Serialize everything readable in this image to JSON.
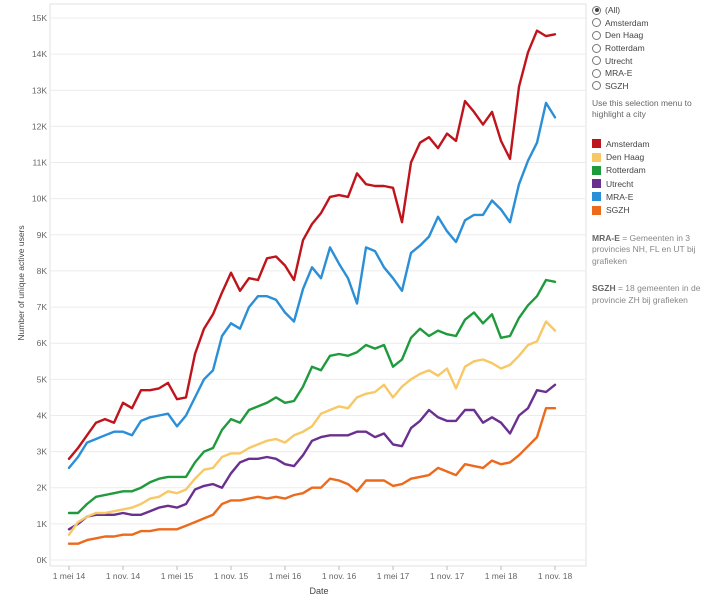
{
  "filter": {
    "options": [
      "(All)",
      "Amsterdam",
      "Den Haag",
      "Rotterdam",
      "Utrecht",
      "MRA-E",
      "SGZH"
    ],
    "selected": "(All)",
    "hint": "Use this selection menu to highlight a city"
  },
  "legend": [
    {
      "label": "Amsterdam",
      "color": "#c0141c"
    },
    {
      "label": "Den Haag",
      "color": "#f8c866"
    },
    {
      "label": "Rotterdam",
      "color": "#1f9a3c"
    },
    {
      "label": "Utrecht",
      "color": "#6a3090"
    },
    {
      "label": "MRA-E",
      "color": "#2b8fd8"
    },
    {
      "label": "SGZH",
      "color": "#ec6a1c"
    }
  ],
  "notes": [
    {
      "term": "MRA-E",
      "text": " = Gemeenten in 3 provincies NH, FL en UT bij grafieken"
    },
    {
      "term": "SGZH",
      "text": " = 18 gemeenten in de provincie ZH bij grafieken"
    }
  ],
  "chart_data": {
    "type": "line",
    "xlabel": "Date",
    "ylabel": "Number of unique active users",
    "x_ticks": [
      "1 mei 14",
      "1 nov. 14",
      "1 mei 15",
      "1 nov. 15",
      "1 mei 16",
      "1 nov. 16",
      "1 mei 17",
      "1 nov. 17",
      "1 mei 18",
      "1 nov. 18"
    ],
    "y_ticks": [
      "0K",
      "1K",
      "2K",
      "3K",
      "4K",
      "5K",
      "6K",
      "7K",
      "8K",
      "9K",
      "10K",
      "11K",
      "12K",
      "13K",
      "14K",
      "15K"
    ],
    "ylim": [
      0,
      15000
    ],
    "x_start": "2014-05",
    "x_interval": "monthly",
    "grid": true,
    "series": [
      {
        "name": "Amsterdam",
        "color": "#c0141c",
        "values": [
          2800,
          3100,
          3450,
          3800,
          3900,
          3800,
          4350,
          4200,
          4700,
          4700,
          4750,
          4900,
          4450,
          4500,
          5700,
          6400,
          6800,
          7400,
          7950,
          7450,
          7800,
          7750,
          8350,
          8400,
          8150,
          7750,
          8850,
          9300,
          9600,
          10050,
          10100,
          10050,
          10700,
          10400,
          10350,
          10350,
          10300,
          9350,
          11000,
          11550,
          11700,
          11400,
          11800,
          11600,
          12700,
          12400,
          12050,
          12400,
          11600,
          11100,
          13100,
          14050,
          14650,
          14500,
          14550
        ]
      },
      {
        "name": "Den Haag",
        "color": "#f8c866",
        "values": [
          700,
          1050,
          1200,
          1300,
          1300,
          1350,
          1400,
          1450,
          1550,
          1700,
          1750,
          1900,
          1850,
          1950,
          2250,
          2500,
          2550,
          2850,
          2950,
          2950,
          3100,
          3200,
          3300,
          3350,
          3250,
          3450,
          3550,
          3700,
          4050,
          4150,
          4250,
          4200,
          4500,
          4600,
          4650,
          4850,
          4500,
          4800,
          5000,
          5150,
          5250,
          5100,
          5300,
          4750,
          5350,
          5500,
          5550,
          5450,
          5300,
          5400,
          5650,
          5950,
          6050,
          6600,
          6350
        ]
      },
      {
        "name": "Rotterdam",
        "color": "#1f9a3c",
        "values": [
          1300,
          1300,
          1550,
          1750,
          1800,
          1850,
          1900,
          1900,
          2000,
          2150,
          2250,
          2300,
          2300,
          2300,
          2700,
          3000,
          3100,
          3600,
          3900,
          3800,
          4150,
          4250,
          4350,
          4500,
          4350,
          4400,
          4800,
          5350,
          5250,
          5650,
          5700,
          5650,
          5750,
          5950,
          5850,
          5950,
          5350,
          5550,
          6150,
          6400,
          6200,
          6350,
          6250,
          6200,
          6650,
          6850,
          6550,
          6800,
          6150,
          6200,
          6700,
          7050,
          7300,
          7750,
          7700
        ]
      },
      {
        "name": "Utrecht",
        "color": "#6a3090",
        "values": [
          850,
          1000,
          1200,
          1250,
          1250,
          1250,
          1300,
          1250,
          1250,
          1350,
          1450,
          1500,
          1450,
          1550,
          1950,
          2050,
          2100,
          2000,
          2400,
          2700,
          2800,
          2800,
          2850,
          2800,
          2650,
          2600,
          2900,
          3300,
          3400,
          3450,
          3450,
          3450,
          3550,
          3550,
          3400,
          3500,
          3200,
          3150,
          3650,
          3850,
          4150,
          3950,
          3850,
          3850,
          4150,
          4150,
          3800,
          3950,
          3800,
          3500,
          4000,
          4200,
          4700,
          4650,
          4850
        ]
      },
      {
        "name": "MRA-E",
        "color": "#2b8fd8",
        "values": [
          2550,
          2850,
          3250,
          3350,
          3450,
          3550,
          3550,
          3450,
          3850,
          3950,
          4000,
          4050,
          3700,
          4000,
          4500,
          5000,
          5250,
          6200,
          6550,
          6400,
          7000,
          7300,
          7300,
          7200,
          6850,
          6600,
          7500,
          8100,
          7800,
          8650,
          8200,
          7800,
          7100,
          8650,
          8550,
          8100,
          7800,
          7450,
          8500,
          8700,
          8950,
          9500,
          9100,
          8800,
          9400,
          9550,
          9550,
          9950,
          9700,
          9350,
          10400,
          11050,
          11550,
          12650,
          12250
        ]
      },
      {
        "name": "SGZH",
        "color": "#ec6a1c",
        "values": [
          450,
          450,
          550,
          600,
          650,
          650,
          700,
          700,
          800,
          800,
          850,
          850,
          850,
          950,
          1050,
          1150,
          1250,
          1550,
          1650,
          1650,
          1700,
          1750,
          1700,
          1750,
          1700,
          1800,
          1850,
          2000,
          2000,
          2250,
          2200,
          2100,
          1900,
          2200,
          2200,
          2200,
          2050,
          2100,
          2250,
          2300,
          2350,
          2550,
          2450,
          2350,
          2650,
          2600,
          2550,
          2750,
          2650,
          2700,
          2900,
          3150,
          3400,
          4200,
          4200
        ]
      }
    ]
  }
}
